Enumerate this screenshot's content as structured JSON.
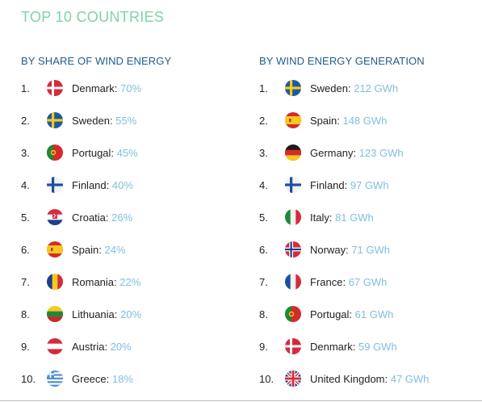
{
  "page_title": "TOP 10 COUNTRIES",
  "left": {
    "header": "BY SHARE OF WIND ENERGY",
    "items": [
      {
        "rank": "1.",
        "country": "Denmark",
        "value": "70%",
        "flag": "denmark-flag"
      },
      {
        "rank": "2.",
        "country": "Sweden",
        "value": "55%",
        "flag": "sweden-flag"
      },
      {
        "rank": "3.",
        "country": "Portugal",
        "value": "45%",
        "flag": "portugal-flag"
      },
      {
        "rank": "4.",
        "country": "Finland",
        "value": "40%",
        "flag": "finland-flag"
      },
      {
        "rank": "5.",
        "country": "Croatia",
        "value": "26%",
        "flag": "croatia-flag"
      },
      {
        "rank": "6.",
        "country": "Spain",
        "value": "24%",
        "flag": "spain-flag"
      },
      {
        "rank": "7.",
        "country": "Romania",
        "value": "22%",
        "flag": "romania-flag"
      },
      {
        "rank": "8.",
        "country": "Lithuania",
        "value": "20%",
        "flag": "lithuania-flag"
      },
      {
        "rank": "9.",
        "country": "Austria",
        "value": "20%",
        "flag": "austria-flag"
      },
      {
        "rank": "10.",
        "country": "Greece",
        "value": "18%",
        "flag": "greece-flag"
      }
    ]
  },
  "right": {
    "header": "BY WIND ENERGY GENERATION",
    "items": [
      {
        "rank": "1.",
        "country": "Sweden",
        "value": "212 GWh",
        "flag": "sweden-flag"
      },
      {
        "rank": "2.",
        "country": "Spain",
        "value": "148 GWh",
        "flag": "spain-flag"
      },
      {
        "rank": "3.",
        "country": "Germany",
        "value": "123 GWh",
        "flag": "germany-flag"
      },
      {
        "rank": "4.",
        "country": "Finland",
        "value": "97 GWh",
        "flag": "finland-flag"
      },
      {
        "rank": "5.",
        "country": "Italy",
        "value": "81 GWh",
        "flag": "italy-flag"
      },
      {
        "rank": "6.",
        "country": "Norway",
        "value": "71 GWh",
        "flag": "norway-flag"
      },
      {
        "rank": "7.",
        "country": "France",
        "value": "67 GWh",
        "flag": "france-flag"
      },
      {
        "rank": "8.",
        "country": "Portugal",
        "value": "61 GWh",
        "flag": "portugal-flag"
      },
      {
        "rank": "9.",
        "country": "Denmark",
        "value": "59 GWh",
        "flag": "denmark-flag"
      },
      {
        "rank": "10.",
        "country": "United Kingdom",
        "value": "47 GWh",
        "flag": "uk-flag"
      }
    ]
  },
  "colors": {
    "title": "#7dd3a8",
    "header": "#1f5d8c",
    "value": "#7fc0dd",
    "text": "#222222"
  }
}
